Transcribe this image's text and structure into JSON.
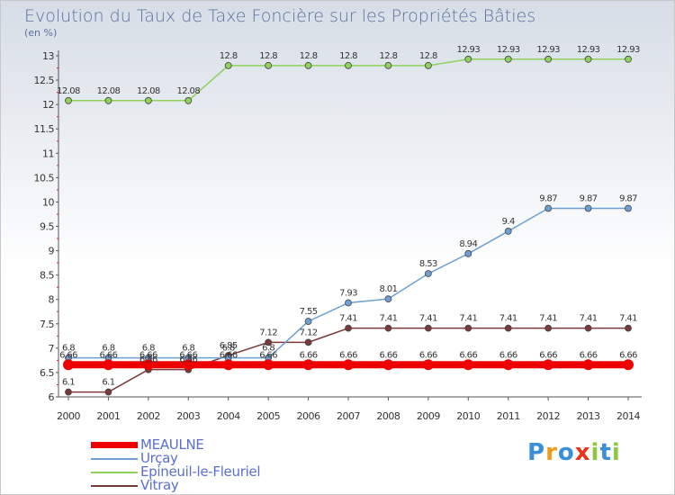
{
  "title": "Evolution du Taux de Taxe Foncière sur les Propriétés Bâties",
  "unit": "(en %)",
  "logo": "Proxiti",
  "chart_data": {
    "type": "line",
    "x": [
      2000,
      2001,
      2002,
      2003,
      2004,
      2005,
      2006,
      2007,
      2008,
      2009,
      2010,
      2011,
      2012,
      2013,
      2014
    ],
    "ylim": [
      6,
      13
    ],
    "yticks": [
      6,
      6.5,
      7,
      7.5,
      8,
      8.5,
      9,
      9.5,
      10,
      10.5,
      11,
      11.5,
      12,
      12.5,
      13
    ],
    "ytick_labels": [
      "6",
      "6.5",
      "7",
      "7.5",
      "8",
      "8.5",
      "9",
      "9.5",
      "10",
      "10.5",
      "11",
      "11.5",
      "12",
      "12.5",
      "13"
    ],
    "legend_position": "bottom-left",
    "series": [
      {
        "name": "MEAULNE",
        "color": "#ee0000",
        "values": [
          6.66,
          6.66,
          6.66,
          6.66,
          6.66,
          6.66,
          6.66,
          6.66,
          6.66,
          6.66,
          6.66,
          6.66,
          6.66,
          6.66,
          6.66
        ],
        "labels": [
          "6.66",
          "6.66",
          "6.66",
          "6.66",
          "6.66",
          "6.66",
          "6.66",
          "6.66",
          "6.66",
          "6.66",
          "6.66",
          "6.66",
          "6.66",
          "6.66",
          "6.66"
        ]
      },
      {
        "name": "Urçay",
        "color": "#6e9fd2",
        "values": [
          6.8,
          6.8,
          6.8,
          6.8,
          6.8,
          6.8,
          7.55,
          7.93,
          8.01,
          8.53,
          8.94,
          9.4,
          9.87,
          9.87,
          9.87
        ],
        "labels": [
          "6.8",
          "6.8",
          "6.8",
          "6.8",
          "6.8",
          "6.8",
          "7.55",
          "7.93",
          "8.01",
          "8.53",
          "8.94",
          "9.4",
          "9.87",
          "9.87",
          "9.87"
        ]
      },
      {
        "name": "Epineuil-le-Fleuriel",
        "color": "#8fd15a",
        "values": [
          12.08,
          12.08,
          12.08,
          12.08,
          12.8,
          12.8,
          12.8,
          12.8,
          12.8,
          12.8,
          12.93,
          12.93,
          12.93,
          12.93,
          12.93
        ],
        "labels": [
          "12.08",
          "12.08",
          "12.08",
          "12.08",
          "12.8",
          "12.8",
          "12.8",
          "12.8",
          "12.8",
          "12.8",
          "12.93",
          "12.93",
          "12.93",
          "12.93",
          "12.93"
        ]
      },
      {
        "name": "Vitray",
        "color": "#7a3a3a",
        "values": [
          6.1,
          6.1,
          6.56,
          6.56,
          6.85,
          7.12,
          7.12,
          7.41,
          7.41,
          7.41,
          7.41,
          7.41,
          7.41,
          7.41,
          7.41
        ],
        "labels": [
          "6.1",
          "6.1",
          "6.56",
          "6.56",
          "6.85",
          "7.12",
          "7.12",
          "7.41",
          "7.41",
          "7.41",
          "7.41",
          "7.41",
          "7.41",
          "7.41",
          "7.41"
        ]
      }
    ]
  }
}
